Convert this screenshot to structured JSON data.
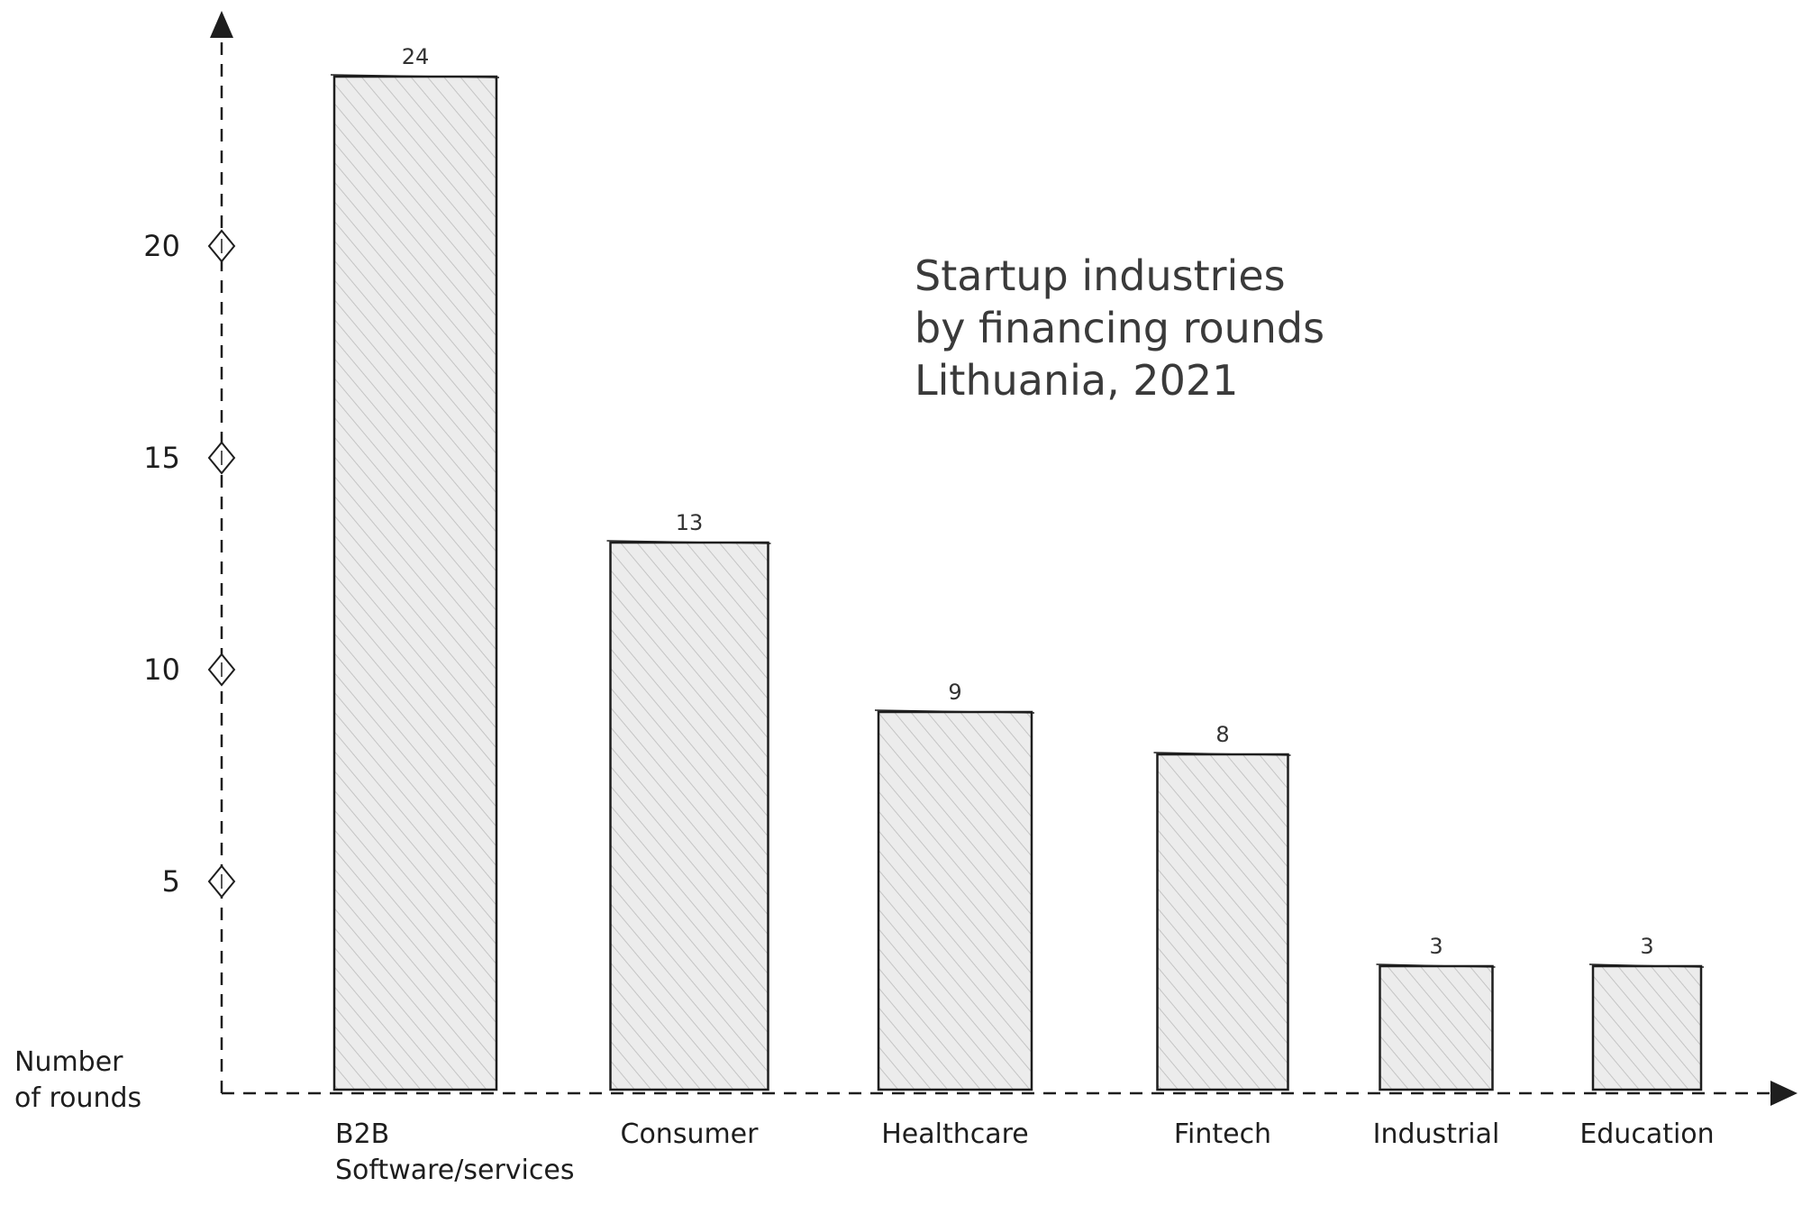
{
  "chart_data": {
    "type": "bar",
    "title_lines": [
      "Startup industries",
      "by financing rounds",
      "Lithuania, 2021"
    ],
    "ylabel_lines": [
      "Number",
      "of rounds"
    ],
    "categories": [
      [
        "B2B",
        "Software/services"
      ],
      [
        "Consumer"
      ],
      [
        "Healthcare"
      ],
      [
        "Fintech"
      ],
      [
        "Industrial"
      ],
      [
        "Education"
      ]
    ],
    "values": [
      24,
      13,
      9,
      8,
      3,
      3
    ],
    "value_labels": [
      "24",
      "13",
      "9",
      "8",
      "3",
      "3"
    ],
    "yticks": [
      5,
      10,
      15,
      20
    ],
    "ytick_labels": [
      "5",
      "10",
      "15",
      "20"
    ],
    "ylim": [
      0,
      25
    ],
    "grid": false,
    "colors": {
      "bar_fill": "#e8e8e8",
      "bar_hatch": "#c4c4c4",
      "stroke": "#1e1e1e",
      "title": "#3a3a3a"
    }
  }
}
